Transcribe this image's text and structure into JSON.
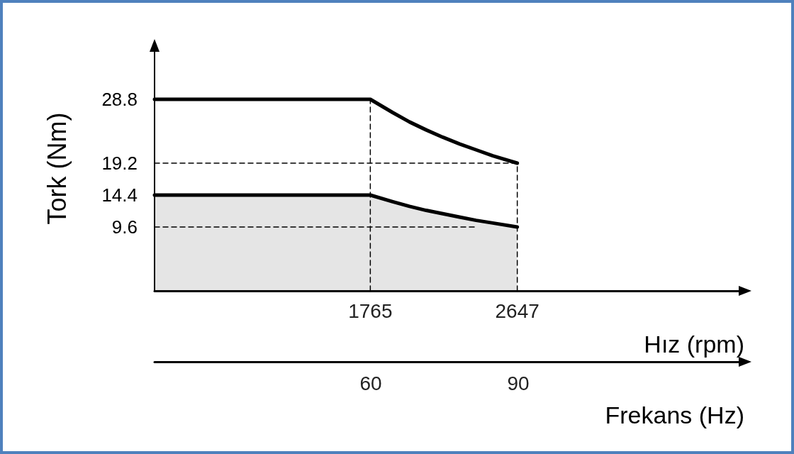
{
  "chart_data": {
    "type": "line",
    "ylabel": "Tork (Nm)",
    "xlabel": "Hız (rpm)",
    "x2label": "Frekans (Hz)",
    "xlim": [
      470,
      4010
    ],
    "xticks": [
      1765,
      2647
    ],
    "x2lim": [
      16,
      136
    ],
    "x2ticks": [
      60,
      90
    ],
    "ylim": [
      0,
      36.8
    ],
    "yticks": [
      9.6,
      14.4,
      19.2,
      28.8
    ],
    "series": [
      {
        "color": "#000000",
        "x": [
          470,
          1765,
          1900,
          2000,
          2100,
          2200,
          2300,
          2400,
          2500,
          2647
        ],
        "values": [
          28.8,
          28.8,
          26.8,
          25.4,
          24.2,
          23.1,
          22.1,
          21.2,
          20.3,
          19.2
        ]
      },
      {
        "type": "area",
        "color": "#000000",
        "x": [
          470,
          1765,
          1900,
          2000,
          2100,
          2200,
          2300,
          2400,
          2500,
          2647
        ],
        "values": [
          14.4,
          14.4,
          13.4,
          12.7,
          12.1,
          11.6,
          11.1,
          10.6,
          10.2,
          9.6
        ]
      },
      {
        "color": "#000000",
        "line_style": "dashed",
        "x": [
          1765,
          1765
        ],
        "values": [
          0,
          28.8
        ]
      },
      {
        "color": "#000000",
        "line_style": "dashed",
        "x": [
          2647,
          2647
        ],
        "values": [
          0,
          19.2
        ]
      },
      {
        "color": "#000000",
        "line_style": "dashed",
        "x": [
          470,
          2647
        ],
        "values": [
          19.2,
          19.2
        ]
      },
      {
        "color": "#000000",
        "line_style": "dashed",
        "x": [
          470,
          2400
        ],
        "values": [
          9.6,
          9.6
        ]
      }
    ],
    "grid": false,
    "marker": "none"
  }
}
